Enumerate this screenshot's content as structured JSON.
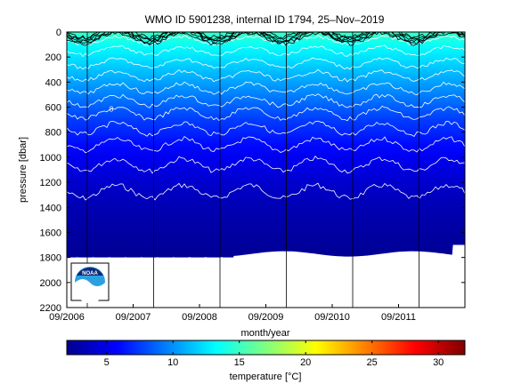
{
  "chart_data": [
    {
      "type": "heatmap",
      "title": "WMO ID 5901238, internal ID 1794, 25–Nov–2019",
      "xlabel": "month/year",
      "ylabel": "pressure [dbar]",
      "x_ticks": [
        "09/2006",
        "09/2007",
        "09/2008",
        "09/2009",
        "09/2010",
        "09/2011"
      ],
      "y_ticks": [
        "0",
        "200",
        "400",
        "600",
        "800",
        "1000",
        "1200",
        "1400",
        "1600",
        "1800",
        "2000",
        "2200"
      ],
      "ylim": [
        0,
        2200
      ],
      "y_reversed": true,
      "data_max_pressure": 1800,
      "bottom_by_period": [
        {
          "period": "09/2006 - 09/2011 and later",
          "max_pressure": 1800
        },
        {
          "period": "late record",
          "max_pressure": 1700
        }
      ],
      "temperature_by_pressure": [
        {
          "pressure": 0,
          "temperature": 15
        },
        {
          "pressure": 100,
          "temperature": 13.5
        },
        {
          "pressure": 200,
          "temperature": 12.5
        },
        {
          "pressure": 300,
          "temperature": 11.5
        },
        {
          "pressure": 400,
          "temperature": 10.5
        },
        {
          "pressure": 500,
          "temperature": 9.5
        },
        {
          "pressure": 600,
          "temperature": 8.5
        },
        {
          "pressure": 700,
          "temperature": 7.5
        },
        {
          "pressure": 800,
          "temperature": 6.8
        },
        {
          "pressure": 900,
          "temperature": 6.0
        },
        {
          "pressure": 1000,
          "temperature": 5.3
        },
        {
          "pressure": 1100,
          "temperature": 4.8
        },
        {
          "pressure": 1200,
          "temperature": 4.3
        },
        {
          "pressure": 1300,
          "temperature": 3.9
        },
        {
          "pressure": 1400,
          "temperature": 3.5
        },
        {
          "pressure": 1600,
          "temperature": 3.0
        },
        {
          "pressure": 1800,
          "temperature": 2.6
        }
      ],
      "contour_levels_white": [
        4,
        5,
        6,
        7,
        8,
        9,
        10,
        11,
        12,
        13,
        14
      ],
      "contour_levels_black": [
        15,
        16,
        17,
        18,
        19,
        20
      ],
      "contour_label_visible": "8",
      "year_marker_lines": [
        "09/2006",
        "09/2007",
        "09/2008",
        "09/2009",
        "09/2010",
        "09/2011"
      ],
      "colorbar": {
        "label": "temperature [°C]",
        "min": 2,
        "max": 32,
        "ticks": [
          "5",
          "10",
          "15",
          "20",
          "25",
          "30"
        ],
        "colormap": "jet"
      },
      "logo_text": "NOAA"
    }
  ]
}
